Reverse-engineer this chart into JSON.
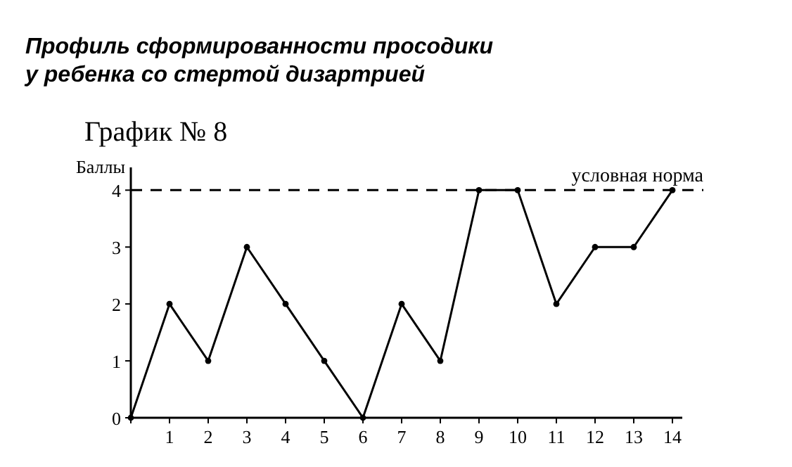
{
  "chart_data": {
    "type": "line",
    "title": "Профиль сформированности просодики\nу ребенка со стертой дизартрией",
    "subtitle": "График № 8",
    "ylabel": "Баллы",
    "x": [
      0,
      1,
      2,
      3,
      4,
      5,
      6,
      7,
      8,
      9,
      10,
      11,
      12,
      13,
      14
    ],
    "series": [
      {
        "color": "#000000",
        "values": [
          0,
          2,
          1,
          3,
          2,
          1,
          0,
          2,
          1,
          4,
          4,
          2,
          3,
          3,
          4
        ]
      }
    ],
    "xlim": [
      0,
      14.8
    ],
    "ylim": [
      0,
      4.4
    ],
    "xticks": [
      {
        "value": 0,
        "label": null
      },
      1,
      2,
      3,
      4,
      5,
      6,
      7,
      8,
      9,
      10,
      11,
      12,
      13,
      14
    ],
    "yticks": [
      0,
      1,
      2,
      3,
      4
    ],
    "ref_lines": [
      {
        "axis": "y",
        "value": 4,
        "label": "условная норма",
        "line_style": "dashed"
      }
    ],
    "grid": false,
    "marker": "circle",
    "line_style": "solid"
  }
}
